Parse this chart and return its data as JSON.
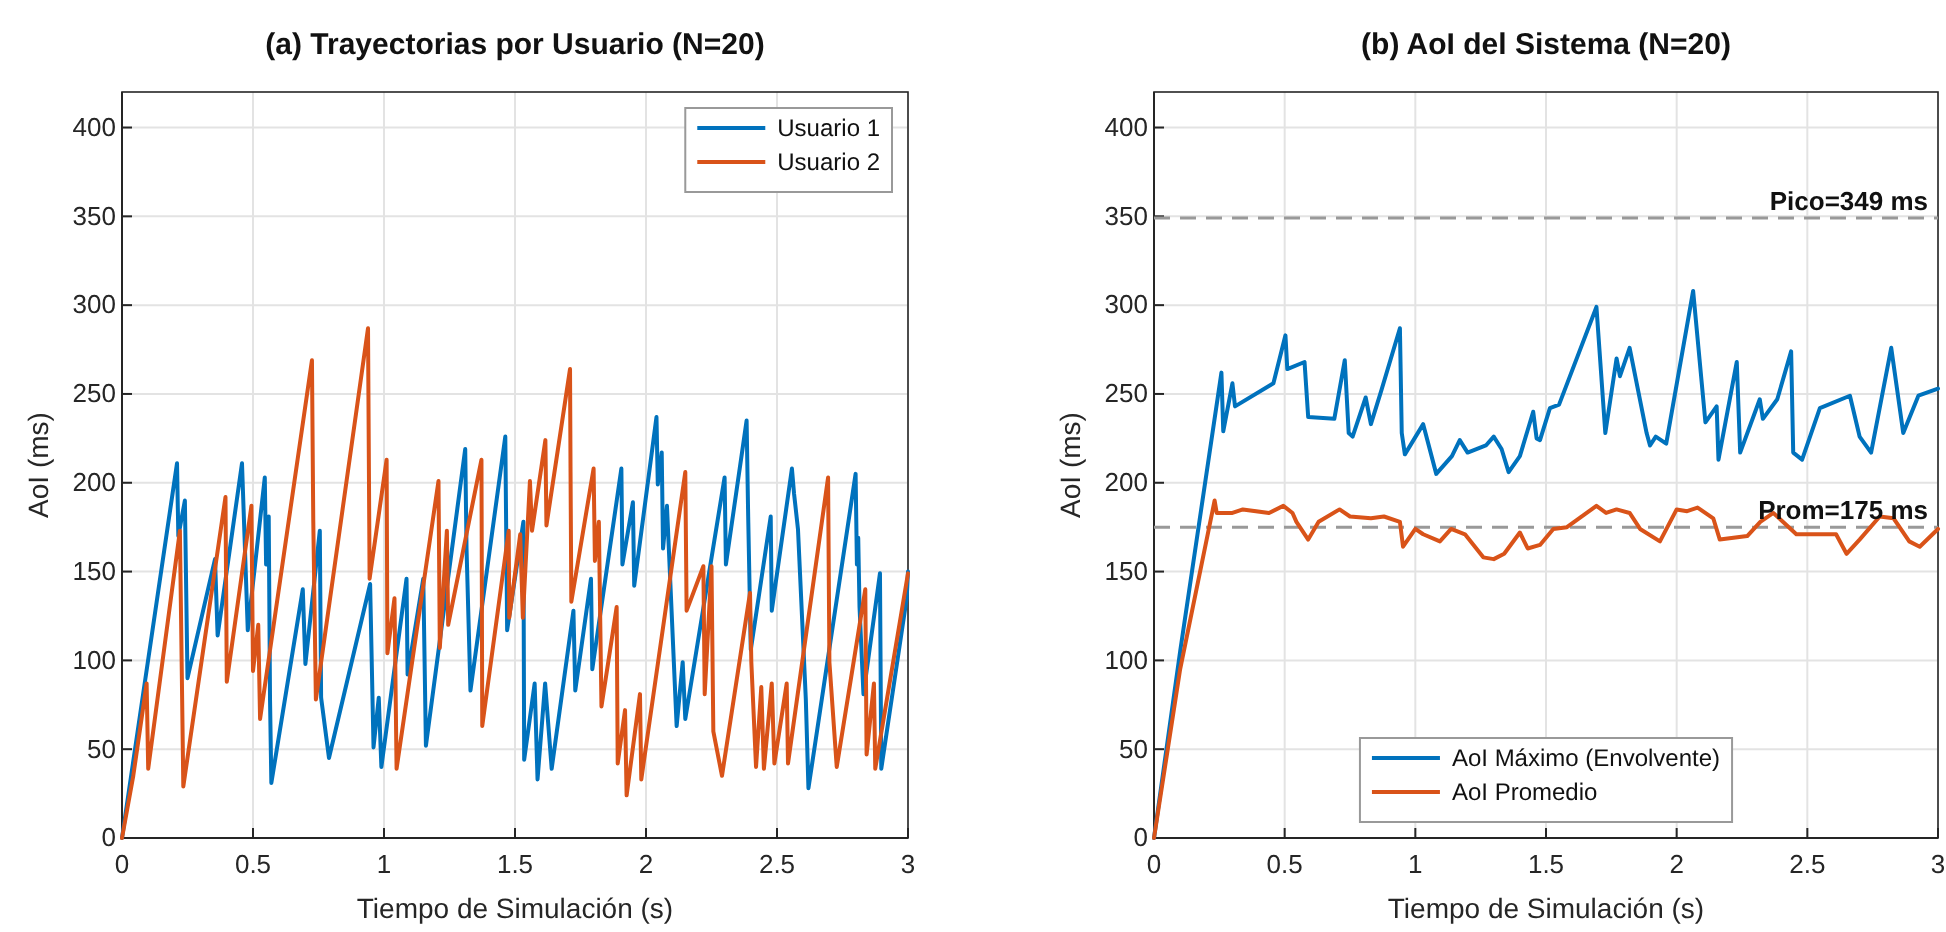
{
  "chart_data": [
    {
      "type": "line",
      "title": "(a) Trayectorias por Usuario (N=20)",
      "xlabel": "Tiempo de Simulación (s)",
      "ylabel": "AoI (ms)",
      "xlim": [
        0,
        3
      ],
      "xticks": [
        0,
        0.5,
        1,
        1.5,
        2,
        2.5,
        3
      ],
      "ylim": [
        0,
        420
      ],
      "yticks": [
        0,
        50,
        100,
        150,
        200,
        250,
        300,
        350,
        400
      ],
      "grid": true,
      "legend": "top right",
      "line_style": "solid",
      "marker": "none",
      "series": [
        {
          "name": "Usuario 1",
          "color": "#0072bd",
          "x": [
            0,
            0.21,
            0.215,
            0.24,
            0.25,
            0.355,
            0.365,
            0.458,
            0.48,
            0.545,
            0.55,
            0.56,
            0.565,
            0.57,
            0.69,
            0.7,
            0.755,
            0.76,
            0.79,
            0.947,
            0.96,
            0.98,
            0.99,
            1.086,
            1.09,
            1.15,
            1.16,
            1.31,
            1.315,
            1.33,
            1.463,
            1.47,
            1.532,
            1.535,
            1.575,
            1.586,
            1.615,
            1.64,
            1.723,
            1.73,
            1.79,
            1.795,
            1.906,
            1.91,
            1.95,
            1.955,
            2.04,
            2.045,
            2.06,
            2.065,
            2.08,
            2.117,
            2.14,
            2.15,
            2.3,
            2.305,
            2.384,
            2.39,
            2.4,
            2.476,
            2.48,
            2.557,
            2.565,
            2.58,
            2.61,
            2.62,
            2.8,
            2.805,
            2.81,
            2.815,
            2.83,
            2.893,
            2.898,
            2.995,
            3
          ],
          "values": [
            0,
            211,
            170,
            190,
            90,
            157,
            114,
            211,
            117,
            203,
            154,
            181,
            78,
            31,
            140,
            98,
            173,
            79,
            45,
            143,
            51,
            79,
            40,
            146,
            92,
            146,
            52,
            219,
            163,
            83,
            226,
            117,
            178,
            44,
            87,
            33,
            87,
            39,
            128,
            83,
            146,
            95,
            208,
            154,
            189,
            142,
            237,
            199,
            217,
            163,
            187,
            63,
            99,
            67,
            203,
            154,
            235,
            181,
            106,
            181,
            128,
            208,
            194,
            174,
            78,
            28,
            205,
            154,
            169,
            130,
            81,
            149,
            39,
            135,
            150
          ]
        },
        {
          "name": "Usuario 2",
          "color": "#d95319",
          "x": [
            0,
            0.043,
            0.094,
            0.1,
            0.221,
            0.234,
            0.395,
            0.4,
            0.494,
            0.5,
            0.52,
            0.527,
            0.725,
            0.73,
            0.74,
            0.939,
            0.945,
            1.01,
            1.013,
            1.04,
            1.048,
            1.208,
            1.213,
            1.24,
            1.245,
            1.372,
            1.375,
            1.476,
            1.478,
            1.52,
            1.53,
            1.557,
            1.565,
            1.616,
            1.62,
            1.71,
            1.712,
            1.715,
            1.8,
            1.805,
            1.82,
            1.83,
            1.888,
            1.892,
            1.92,
            1.926,
            1.977,
            1.982,
            2.15,
            2.155,
            2.219,
            2.224,
            2.25,
            2.257,
            2.29,
            2.397,
            2.402,
            2.42,
            2.44,
            2.45,
            2.48,
            2.49,
            2.537,
            2.542,
            2.695,
            2.7,
            2.728,
            2.837,
            2.842,
            2.87,
            2.875,
            3
          ],
          "values": [
            0,
            35,
            87,
            39,
            173,
            29,
            192,
            88,
            187,
            94,
            120,
            67,
            269,
            179,
            78,
            287,
            146,
            213,
            104,
            135,
            39,
            201,
            107,
            173,
            120,
            213,
            63,
            173,
            124,
            171,
            124,
            201,
            173,
            224,
            176,
            264,
            206,
            133,
            208,
            156,
            178,
            74,
            130,
            42,
            72,
            24,
            81,
            33,
            206,
            128,
            153,
            81,
            153,
            60,
            35,
            138,
            99,
            40,
            85,
            39,
            87,
            42,
            87,
            42,
            203,
            99,
            40,
            140,
            47,
            87,
            39,
            149
          ]
        }
      ]
    },
    {
      "type": "line",
      "title": "(b) AoI del Sistema (N=20)",
      "xlabel": "Tiempo de Simulación (s)",
      "ylabel": "AoI (ms)",
      "xlim": [
        0,
        3
      ],
      "xticks": [
        0,
        0.5,
        1,
        1.5,
        2,
        2.5,
        3
      ],
      "ylim": [
        0,
        420
      ],
      "yticks": [
        0,
        50,
        100,
        150,
        200,
        250,
        300,
        350,
        400
      ],
      "grid": true,
      "legend": "bottom",
      "line_style": "solid",
      "marker": "none",
      "ref_lines": [
        {
          "axis": "y",
          "value": 349,
          "label": "Pico=349 ms",
          "color": "#999999",
          "line_style": "dashed"
        },
        {
          "axis": "y",
          "value": 175,
          "label": "Prom=175 ms",
          "color": "#999999",
          "line_style": "dashed"
        }
      ],
      "series": [
        {
          "name": "AoI Máximo (Envolvente)",
          "color": "#0072bd",
          "x": [
            0,
            0.1,
            0.258,
            0.265,
            0.3,
            0.31,
            0.457,
            0.503,
            0.51,
            0.576,
            0.59,
            0.69,
            0.73,
            0.745,
            0.76,
            0.81,
            0.83,
            0.87,
            0.941,
            0.948,
            0.96,
            1.03,
            1.08,
            1.14,
            1.17,
            1.2,
            1.27,
            1.3,
            1.33,
            1.357,
            1.4,
            1.451,
            1.464,
            1.477,
            1.515,
            1.55,
            1.693,
            1.727,
            1.77,
            1.783,
            1.82,
            1.885,
            1.898,
            1.92,
            1.96,
            2.063,
            2.11,
            2.153,
            2.16,
            2.23,
            2.243,
            2.318,
            2.33,
            2.385,
            2.438,
            2.446,
            2.48,
            2.548,
            2.663,
            2.7,
            2.744,
            2.821,
            2.867,
            2.925,
            3
          ],
          "values": [
            0,
            105,
            262,
            229,
            256,
            243,
            256,
            283,
            264,
            268,
            237,
            236,
            269,
            228,
            226,
            248,
            233,
            252,
            287,
            228,
            216,
            233,
            205,
            215,
            224,
            217,
            221,
            226,
            219,
            206,
            215,
            240,
            225,
            224,
            242,
            244,
            299,
            228,
            270,
            260,
            276,
            228,
            221,
            226,
            222,
            308,
            234,
            243,
            213,
            268,
            217,
            247,
            236,
            247,
            274,
            217,
            213,
            242,
            249,
            226,
            217,
            276,
            228,
            249,
            253
          ]
        },
        {
          "name": "AoI Promedio",
          "color": "#d95319",
          "x": [
            0,
            0.1,
            0.232,
            0.24,
            0.3,
            0.34,
            0.44,
            0.495,
            0.53,
            0.545,
            0.59,
            0.63,
            0.71,
            0.75,
            0.83,
            0.88,
            0.941,
            0.953,
            1.0,
            1.03,
            1.094,
            1.137,
            1.19,
            1.26,
            1.3,
            1.34,
            1.4,
            1.43,
            1.477,
            1.528,
            1.58,
            1.693,
            1.73,
            1.77,
            1.82,
            1.86,
            1.936,
            2.0,
            2.04,
            2.08,
            2.14,
            2.165,
            2.27,
            2.32,
            2.37,
            2.458,
            2.547,
            2.61,
            2.65,
            2.7,
            2.777,
            2.83,
            2.89,
            2.93,
            3
          ],
          "values": [
            0,
            95,
            190,
            183,
            183,
            185,
            183,
            187,
            183,
            178,
            168,
            178,
            185,
            181,
            180,
            181,
            178,
            164,
            174,
            171,
            167,
            174,
            171,
            158,
            157,
            160,
            172,
            163,
            165,
            174,
            175,
            187,
            183,
            185,
            183,
            174,
            167,
            185,
            184,
            186,
            180,
            168,
            170,
            178,
            183,
            171,
            171,
            171,
            160,
            168,
            181,
            180,
            167,
            164,
            174
          ]
        }
      ]
    }
  ]
}
